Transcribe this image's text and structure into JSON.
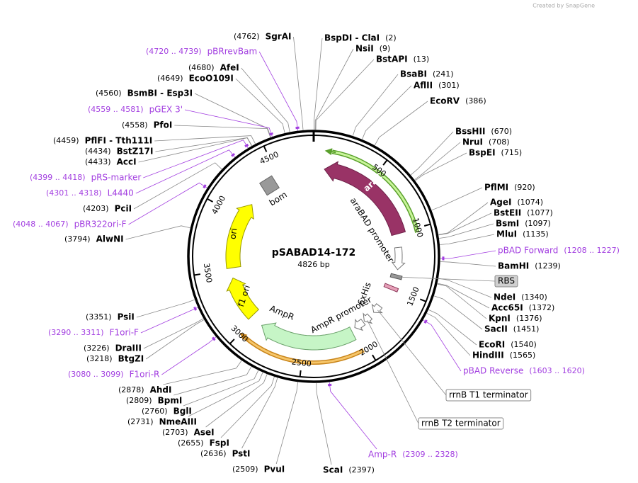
{
  "title": "pSABAD14-172",
  "length": "4826 bp",
  "credit": "Created by SnapGene",
  "ticks": [
    500,
    1000,
    1500,
    2000,
    2500,
    3000,
    3500,
    4000,
    4500
  ],
  "enzymes": [
    {
      "name": "BspDI - ClaI",
      "position": "(2)"
    },
    {
      "name": "NsiI",
      "position": "(9)"
    },
    {
      "name": "BstAPI",
      "position": "(13)"
    },
    {
      "name": "BsaBI",
      "position": "(241)"
    },
    {
      "name": "AflII",
      "position": "(301)"
    },
    {
      "name": "EcoRV",
      "position": "(386)"
    },
    {
      "name": "BssHII",
      "position": "(670)"
    },
    {
      "name": "NruI",
      "position": "(708)"
    },
    {
      "name": "BspEI",
      "position": "(715)"
    },
    {
      "name": "PflMI",
      "position": "(920)"
    },
    {
      "name": "AgeI",
      "position": "(1074)"
    },
    {
      "name": "BstEII",
      "position": "(1077)"
    },
    {
      "name": "BsmI",
      "position": "(1097)"
    },
    {
      "name": "MluI",
      "position": "(1135)"
    },
    {
      "name": "BamHI",
      "position": "(1239)"
    },
    {
      "name": "NdeI",
      "position": "(1340)"
    },
    {
      "name": "Acc65I",
      "position": "(1372)"
    },
    {
      "name": "KpnI",
      "position": "(1376)"
    },
    {
      "name": "SacII",
      "position": "(1451)"
    },
    {
      "name": "EcoRI",
      "position": "(1540)"
    },
    {
      "name": "HindIII",
      "position": "(1565)"
    },
    {
      "name": "ScaI",
      "position": "(2397)"
    },
    {
      "name": "PvuI",
      "position": "(2509)"
    },
    {
      "name": "PstI",
      "position": "(2636)"
    },
    {
      "name": "FspI",
      "position": "(2655)"
    },
    {
      "name": "AseI",
      "position": "(2703)"
    },
    {
      "name": "NmeAIII",
      "position": "(2731)"
    },
    {
      "name": "BglI",
      "position": "(2760)"
    },
    {
      "name": "BpmI",
      "position": "(2809)"
    },
    {
      "name": "AhdI",
      "position": "(2878)"
    },
    {
      "name": "BtgZI",
      "position": "(3218)"
    },
    {
      "name": "DraIII",
      "position": "(3226)"
    },
    {
      "name": "PsiI",
      "position": "(3351)"
    },
    {
      "name": "AlwNI",
      "position": "(3794)"
    },
    {
      "name": "PciI",
      "position": "(4203)"
    },
    {
      "name": "AccI",
      "position": "(4433)"
    },
    {
      "name": "BstZ17I",
      "position": "(4434)"
    },
    {
      "name": "PflFI - Tth111I",
      "position": "(4459)"
    },
    {
      "name": "PfoI",
      "position": "(4558)"
    },
    {
      "name": "BsmBI - Esp3I",
      "position": "(4560)"
    },
    {
      "name": "EcoO109I",
      "position": "(4649)"
    },
    {
      "name": "AfeI",
      "position": "(4680)"
    },
    {
      "name": "SgrAI",
      "position": "(4762)"
    }
  ],
  "primers": [
    {
      "name": "pBRrevBam",
      "position": "(4720 .. 4739)"
    },
    {
      "name": "pGEX 3'",
      "position": "(4559 .. 4581)"
    },
    {
      "name": "pRS-marker",
      "position": "(4399 .. 4418)"
    },
    {
      "name": "L4440",
      "position": "(4301 .. 4318)"
    },
    {
      "name": "pBR322ori-F",
      "position": "(4048 .. 4067)"
    },
    {
      "name": "F1ori-F",
      "position": "(3290 .. 3311)"
    },
    {
      "name": "F1ori-R",
      "position": "(3080 .. 3099)"
    },
    {
      "name": "pBAD Forward",
      "position": "(1208 .. 1227)"
    },
    {
      "name": "pBAD Reverse",
      "position": "(1603 .. 1620)"
    },
    {
      "name": "Amp-R",
      "position": "(2309 .. 2328)"
    }
  ],
  "features": [
    "araC",
    "araBAD promoter",
    "6xHis",
    "AmpR promoter",
    "AmpR",
    "ori",
    "f1 ori",
    "bom"
  ],
  "boxed_features": [
    "RBS",
    "rrnB T1 terminator",
    "rrnB T2 terminator"
  ]
}
